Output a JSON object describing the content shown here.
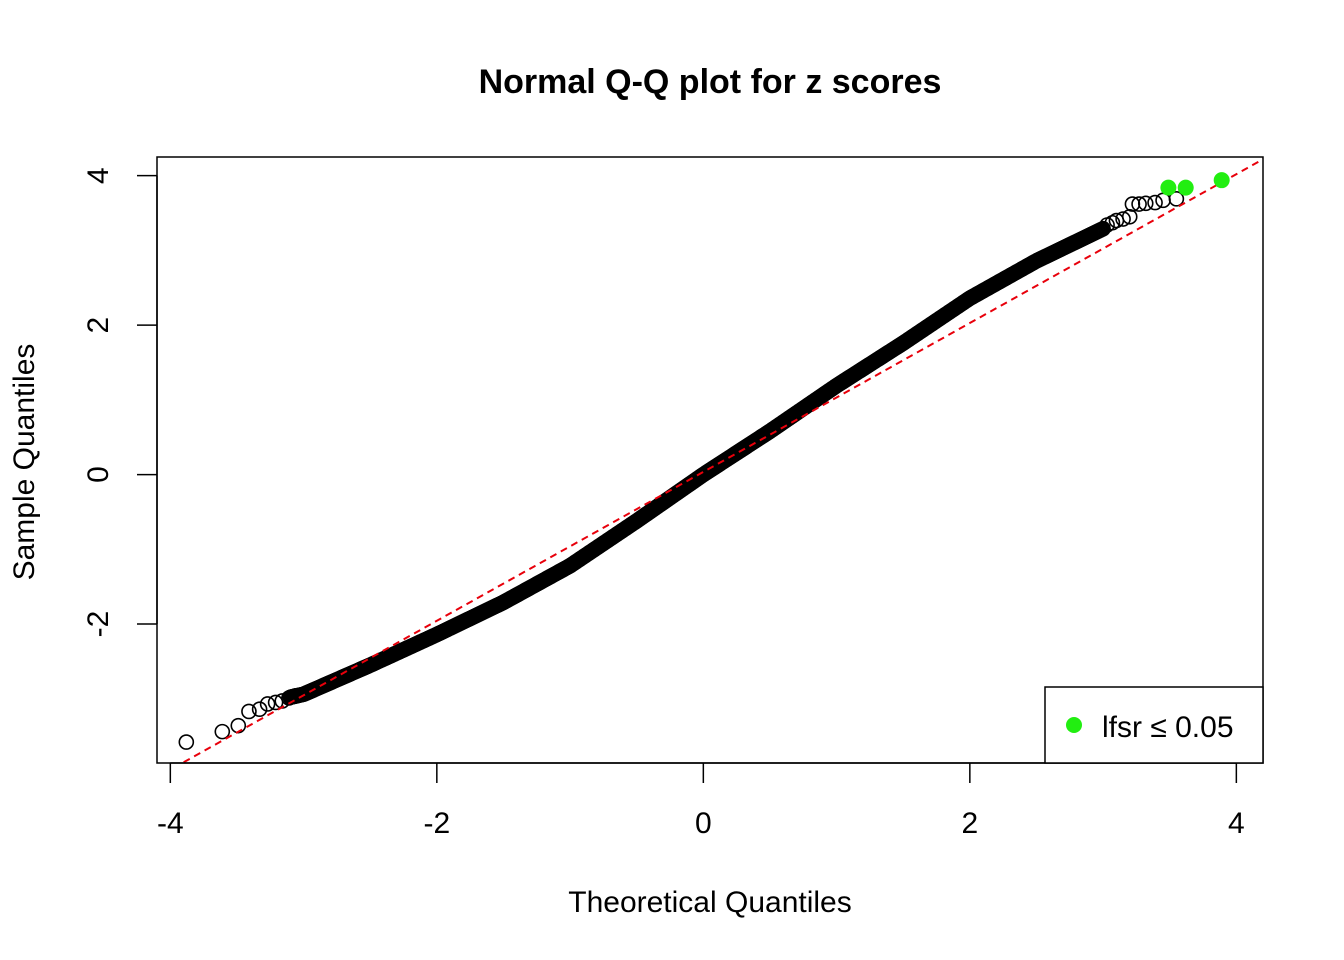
{
  "chart_data": {
    "type": "scatter",
    "title": "Normal Q-Q plot for z scores",
    "xlabel": "Theoretical Quantiles",
    "ylabel": "Sample Quantiles",
    "xlim": [
      -4.1,
      4.2
    ],
    "ylim": [
      -3.86,
      4.25
    ],
    "x_ticks": [
      -4,
      -2,
      0,
      2,
      4
    ],
    "x_tick_labels": [
      "-4",
      "-2",
      "0",
      "2",
      "4"
    ],
    "y_ticks": [
      -2,
      0,
      2,
      4
    ],
    "y_tick_labels": [
      "-2",
      "0",
      "2",
      "4"
    ],
    "grid": false,
    "legend_position": "bottom-right",
    "reference_line": {
      "color": "#e8000b",
      "style": "dashed",
      "through": [
        [
          -3.9,
          -3.85
        ],
        [
          4.2,
          4.22
        ]
      ]
    },
    "series": [
      {
        "name": "",
        "marker": "open-circle",
        "color": "#000000",
        "curve_knots": [
          [
            -3.1,
            -2.98
          ],
          [
            -3.0,
            -2.94
          ],
          [
            -2.5,
            -2.55
          ],
          [
            -2.0,
            -2.14
          ],
          [
            -1.5,
            -1.71
          ],
          [
            -1.0,
            -1.22
          ],
          [
            -0.5,
            -0.62
          ],
          [
            0.0,
            0.0
          ],
          [
            0.5,
            0.58
          ],
          [
            1.0,
            1.19
          ],
          [
            1.5,
            1.76
          ],
          [
            2.0,
            2.36
          ],
          [
            2.5,
            2.86
          ],
          [
            3.0,
            3.29
          ]
        ],
        "tail_points": [
          [
            -3.88,
            -3.58
          ],
          [
            -3.61,
            -3.44
          ],
          [
            -3.49,
            -3.36
          ],
          [
            -3.41,
            -3.17
          ],
          [
            -3.33,
            -3.14
          ],
          [
            -3.27,
            -3.07
          ],
          [
            -3.21,
            -3.05
          ],
          [
            -3.16,
            -3.03
          ],
          [
            -3.11,
            -2.99
          ],
          [
            -3.06,
            -2.96
          ],
          [
            3.03,
            3.34
          ],
          [
            3.07,
            3.37
          ],
          [
            3.1,
            3.4
          ],
          [
            3.15,
            3.42
          ],
          [
            3.2,
            3.45
          ],
          [
            3.22,
            3.62
          ],
          [
            3.27,
            3.62
          ],
          [
            3.32,
            3.63
          ],
          [
            3.39,
            3.64
          ],
          [
            3.45,
            3.67
          ],
          [
            3.55,
            3.69
          ]
        ]
      },
      {
        "name": "lfsr ≤ 0.05",
        "marker": "filled-circle",
        "color": "#22ee11",
        "points": [
          [
            3.49,
            3.84
          ],
          [
            3.62,
            3.84
          ],
          [
            3.89,
            3.94
          ]
        ]
      }
    ],
    "legend": {
      "entries": [
        "lfsr ≤ 0.05"
      ]
    }
  }
}
